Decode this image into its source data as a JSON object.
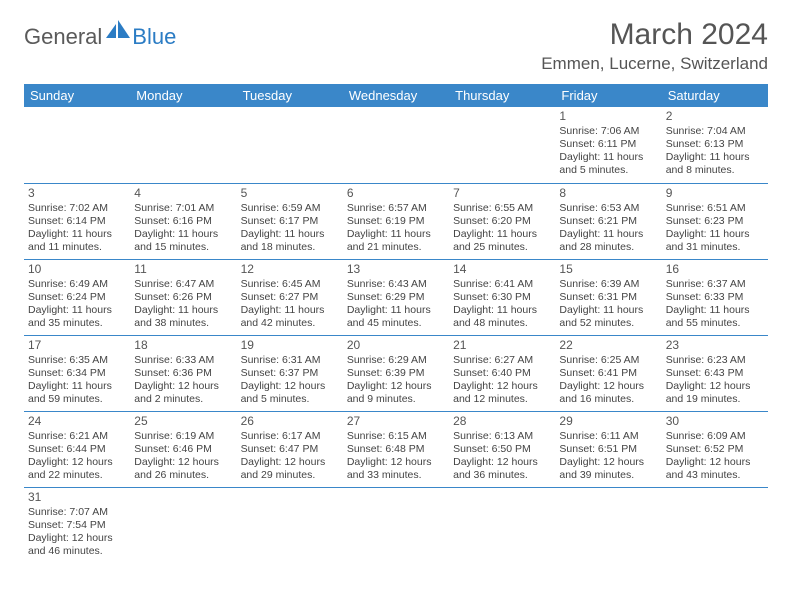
{
  "brand": {
    "part1": "General",
    "part2": "Blue"
  },
  "title": "March 2024",
  "location": "Emmen, Lucerne, Switzerland",
  "colors": {
    "header_bg": "#3a87c9",
    "header_text": "#ffffff",
    "cell_border": "#3a87c9",
    "text": "#444444",
    "brand_blue": "#2b7cc4"
  },
  "weekdays": [
    "Sunday",
    "Monday",
    "Tuesday",
    "Wednesday",
    "Thursday",
    "Friday",
    "Saturday"
  ],
  "weeks": [
    [
      null,
      null,
      null,
      null,
      null,
      {
        "d": "1",
        "sr": "Sunrise: 7:06 AM",
        "ss": "Sunset: 6:11 PM",
        "dl1": "Daylight: 11 hours",
        "dl2": "and 5 minutes."
      },
      {
        "d": "2",
        "sr": "Sunrise: 7:04 AM",
        "ss": "Sunset: 6:13 PM",
        "dl1": "Daylight: 11 hours",
        "dl2": "and 8 minutes."
      }
    ],
    [
      {
        "d": "3",
        "sr": "Sunrise: 7:02 AM",
        "ss": "Sunset: 6:14 PM",
        "dl1": "Daylight: 11 hours",
        "dl2": "and 11 minutes."
      },
      {
        "d": "4",
        "sr": "Sunrise: 7:01 AM",
        "ss": "Sunset: 6:16 PM",
        "dl1": "Daylight: 11 hours",
        "dl2": "and 15 minutes."
      },
      {
        "d": "5",
        "sr": "Sunrise: 6:59 AM",
        "ss": "Sunset: 6:17 PM",
        "dl1": "Daylight: 11 hours",
        "dl2": "and 18 minutes."
      },
      {
        "d": "6",
        "sr": "Sunrise: 6:57 AM",
        "ss": "Sunset: 6:19 PM",
        "dl1": "Daylight: 11 hours",
        "dl2": "and 21 minutes."
      },
      {
        "d": "7",
        "sr": "Sunrise: 6:55 AM",
        "ss": "Sunset: 6:20 PM",
        "dl1": "Daylight: 11 hours",
        "dl2": "and 25 minutes."
      },
      {
        "d": "8",
        "sr": "Sunrise: 6:53 AM",
        "ss": "Sunset: 6:21 PM",
        "dl1": "Daylight: 11 hours",
        "dl2": "and 28 minutes."
      },
      {
        "d": "9",
        "sr": "Sunrise: 6:51 AM",
        "ss": "Sunset: 6:23 PM",
        "dl1": "Daylight: 11 hours",
        "dl2": "and 31 minutes."
      }
    ],
    [
      {
        "d": "10",
        "sr": "Sunrise: 6:49 AM",
        "ss": "Sunset: 6:24 PM",
        "dl1": "Daylight: 11 hours",
        "dl2": "and 35 minutes."
      },
      {
        "d": "11",
        "sr": "Sunrise: 6:47 AM",
        "ss": "Sunset: 6:26 PM",
        "dl1": "Daylight: 11 hours",
        "dl2": "and 38 minutes."
      },
      {
        "d": "12",
        "sr": "Sunrise: 6:45 AM",
        "ss": "Sunset: 6:27 PM",
        "dl1": "Daylight: 11 hours",
        "dl2": "and 42 minutes."
      },
      {
        "d": "13",
        "sr": "Sunrise: 6:43 AM",
        "ss": "Sunset: 6:29 PM",
        "dl1": "Daylight: 11 hours",
        "dl2": "and 45 minutes."
      },
      {
        "d": "14",
        "sr": "Sunrise: 6:41 AM",
        "ss": "Sunset: 6:30 PM",
        "dl1": "Daylight: 11 hours",
        "dl2": "and 48 minutes."
      },
      {
        "d": "15",
        "sr": "Sunrise: 6:39 AM",
        "ss": "Sunset: 6:31 PM",
        "dl1": "Daylight: 11 hours",
        "dl2": "and 52 minutes."
      },
      {
        "d": "16",
        "sr": "Sunrise: 6:37 AM",
        "ss": "Sunset: 6:33 PM",
        "dl1": "Daylight: 11 hours",
        "dl2": "and 55 minutes."
      }
    ],
    [
      {
        "d": "17",
        "sr": "Sunrise: 6:35 AM",
        "ss": "Sunset: 6:34 PM",
        "dl1": "Daylight: 11 hours",
        "dl2": "and 59 minutes."
      },
      {
        "d": "18",
        "sr": "Sunrise: 6:33 AM",
        "ss": "Sunset: 6:36 PM",
        "dl1": "Daylight: 12 hours",
        "dl2": "and 2 minutes."
      },
      {
        "d": "19",
        "sr": "Sunrise: 6:31 AM",
        "ss": "Sunset: 6:37 PM",
        "dl1": "Daylight: 12 hours",
        "dl2": "and 5 minutes."
      },
      {
        "d": "20",
        "sr": "Sunrise: 6:29 AM",
        "ss": "Sunset: 6:39 PM",
        "dl1": "Daylight: 12 hours",
        "dl2": "and 9 minutes."
      },
      {
        "d": "21",
        "sr": "Sunrise: 6:27 AM",
        "ss": "Sunset: 6:40 PM",
        "dl1": "Daylight: 12 hours",
        "dl2": "and 12 minutes."
      },
      {
        "d": "22",
        "sr": "Sunrise: 6:25 AM",
        "ss": "Sunset: 6:41 PM",
        "dl1": "Daylight: 12 hours",
        "dl2": "and 16 minutes."
      },
      {
        "d": "23",
        "sr": "Sunrise: 6:23 AM",
        "ss": "Sunset: 6:43 PM",
        "dl1": "Daylight: 12 hours",
        "dl2": "and 19 minutes."
      }
    ],
    [
      {
        "d": "24",
        "sr": "Sunrise: 6:21 AM",
        "ss": "Sunset: 6:44 PM",
        "dl1": "Daylight: 12 hours",
        "dl2": "and 22 minutes."
      },
      {
        "d": "25",
        "sr": "Sunrise: 6:19 AM",
        "ss": "Sunset: 6:46 PM",
        "dl1": "Daylight: 12 hours",
        "dl2": "and 26 minutes."
      },
      {
        "d": "26",
        "sr": "Sunrise: 6:17 AM",
        "ss": "Sunset: 6:47 PM",
        "dl1": "Daylight: 12 hours",
        "dl2": "and 29 minutes."
      },
      {
        "d": "27",
        "sr": "Sunrise: 6:15 AM",
        "ss": "Sunset: 6:48 PM",
        "dl1": "Daylight: 12 hours",
        "dl2": "and 33 minutes."
      },
      {
        "d": "28",
        "sr": "Sunrise: 6:13 AM",
        "ss": "Sunset: 6:50 PM",
        "dl1": "Daylight: 12 hours",
        "dl2": "and 36 minutes."
      },
      {
        "d": "29",
        "sr": "Sunrise: 6:11 AM",
        "ss": "Sunset: 6:51 PM",
        "dl1": "Daylight: 12 hours",
        "dl2": "and 39 minutes."
      },
      {
        "d": "30",
        "sr": "Sunrise: 6:09 AM",
        "ss": "Sunset: 6:52 PM",
        "dl1": "Daylight: 12 hours",
        "dl2": "and 43 minutes."
      }
    ],
    [
      {
        "d": "31",
        "sr": "Sunrise: 7:07 AM",
        "ss": "Sunset: 7:54 PM",
        "dl1": "Daylight: 12 hours",
        "dl2": "and 46 minutes."
      },
      null,
      null,
      null,
      null,
      null,
      null
    ]
  ]
}
